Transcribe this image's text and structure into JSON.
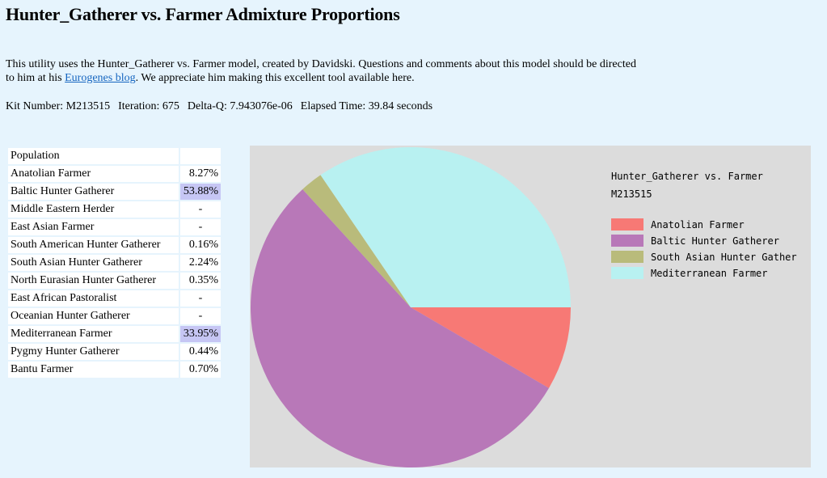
{
  "page": {
    "title": "Hunter_Gatherer vs. Farmer Admixture Proportions",
    "intro_before_link": "This utility uses the Hunter_Gatherer vs. Farmer model, created by Davidski. Questions and comments about this model should be directed to him at his ",
    "intro_link": "Eurogenes blog",
    "intro_after_link": ". We appreciate him making this excellent tool available here."
  },
  "run": {
    "kit": "Kit Number: M213515",
    "iteration": "Iteration: 675",
    "delta_q": "Delta-Q: 7.943076e-06",
    "elapsed": "Elapsed Time: 39.84 seconds"
  },
  "table": {
    "header": "Population",
    "rows": [
      {
        "name": "Anatolian Farmer",
        "value": "8.27%",
        "highlight": false
      },
      {
        "name": "Baltic Hunter Gatherer",
        "value": "53.88%",
        "highlight": true
      },
      {
        "name": "Middle Eastern Herder",
        "value": "-",
        "highlight": false
      },
      {
        "name": "East Asian Farmer",
        "value": "-",
        "highlight": false
      },
      {
        "name": "South American Hunter Gatherer",
        "value": "0.16%",
        "highlight": false
      },
      {
        "name": "South Asian Hunter Gatherer",
        "value": "2.24%",
        "highlight": false
      },
      {
        "name": "North Eurasian Hunter Gatherer",
        "value": "0.35%",
        "highlight": false
      },
      {
        "name": "East African Pastoralist",
        "value": "-",
        "highlight": false
      },
      {
        "name": "Oceanian Hunter Gatherer",
        "value": "-",
        "highlight": false
      },
      {
        "name": "Mediterranean Farmer",
        "value": "33.95%",
        "highlight": true
      },
      {
        "name": "Pygmy Hunter Gatherer",
        "value": "0.44%",
        "highlight": false
      },
      {
        "name": "Bantu Farmer",
        "value": "0.70%",
        "highlight": false
      }
    ]
  },
  "chart_data": {
    "type": "pie",
    "title_line1": "Hunter_Gatherer vs. Farmer",
    "title_line2": "M213515",
    "legend_position": "right",
    "start_angle_deg": 0,
    "direction": "clockwise",
    "slices": [
      {
        "label": "Anatolian Farmer",
        "value": 8.27,
        "color": "#f77975"
      },
      {
        "label": "Baltic Hunter Gatherer",
        "value": 53.88,
        "color": "#b878b8"
      },
      {
        "label": "South Asian Hunter Gather",
        "value": 2.24,
        "color": "#b9bb7b"
      },
      {
        "label": "Mediterranean Farmer",
        "value": 33.95,
        "color": "#b8f1f1"
      }
    ],
    "background": "#dcdcdc"
  }
}
